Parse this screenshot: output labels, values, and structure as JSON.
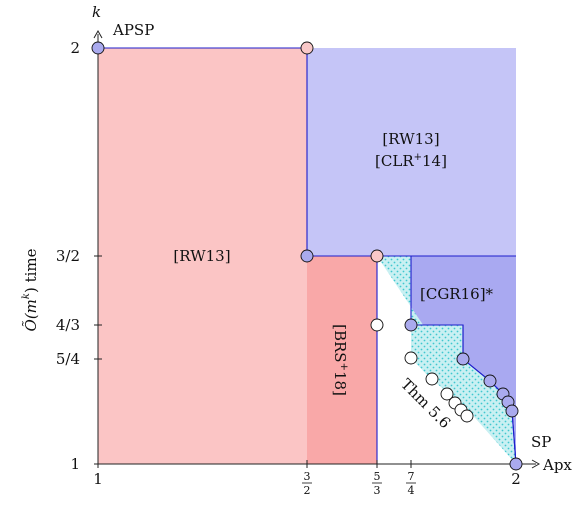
{
  "axes": {
    "y_label": "Õ(m^k) time",
    "y_label_main": "Õ(m",
    "y_label_exp": "k",
    "y_label_tail": ") time",
    "y_var": "k",
    "y_top_tag": "APSP",
    "x_var": "Apx",
    "x_end_tag": "SP",
    "x_ticks": [
      {
        "label": "1",
        "value": 1
      },
      {
        "num": "3",
        "den": "2",
        "value": 1.5
      },
      {
        "num": "5",
        "den": "3",
        "value": 1.6667
      },
      {
        "num": "7",
        "den": "4",
        "value": 1.75
      },
      {
        "label": "2",
        "value": 2
      }
    ],
    "y_ticks": [
      {
        "label": "1",
        "value": 1
      },
      {
        "label": "5/4",
        "value": 1.25
      },
      {
        "label": "4/3",
        "value": 1.3333
      },
      {
        "label": "3/2",
        "value": 1.5
      },
      {
        "label": "2",
        "value": 2
      }
    ]
  },
  "regions": [
    {
      "id": "rw13-left",
      "label": "[RW13]",
      "color": "#fbc5c5"
    },
    {
      "id": "rw13-clr14",
      "line1": "[RW13]",
      "line2_a": "[CLR",
      "line2_sup": "+",
      "line2_b": "14]",
      "color": "#c5c5f7"
    },
    {
      "id": "brs18",
      "label_a": "[BRS",
      "label_sup": "+",
      "label_b": "18]",
      "color": "#f9a8a8"
    },
    {
      "id": "cgr16",
      "label": "[CGR16]*",
      "color": "#a9a9f1"
    },
    {
      "id": "thm56",
      "label": "Thm 5.6",
      "color": "#b8ecef"
    }
  ],
  "colors": {
    "boundary": "#1d1dcc",
    "point_pink": "#f9c8c8",
    "point_blue": "#aaaaee",
    "point_white": "#ffffff",
    "axis": "#222222",
    "hatch": "#59d3d9"
  }
}
